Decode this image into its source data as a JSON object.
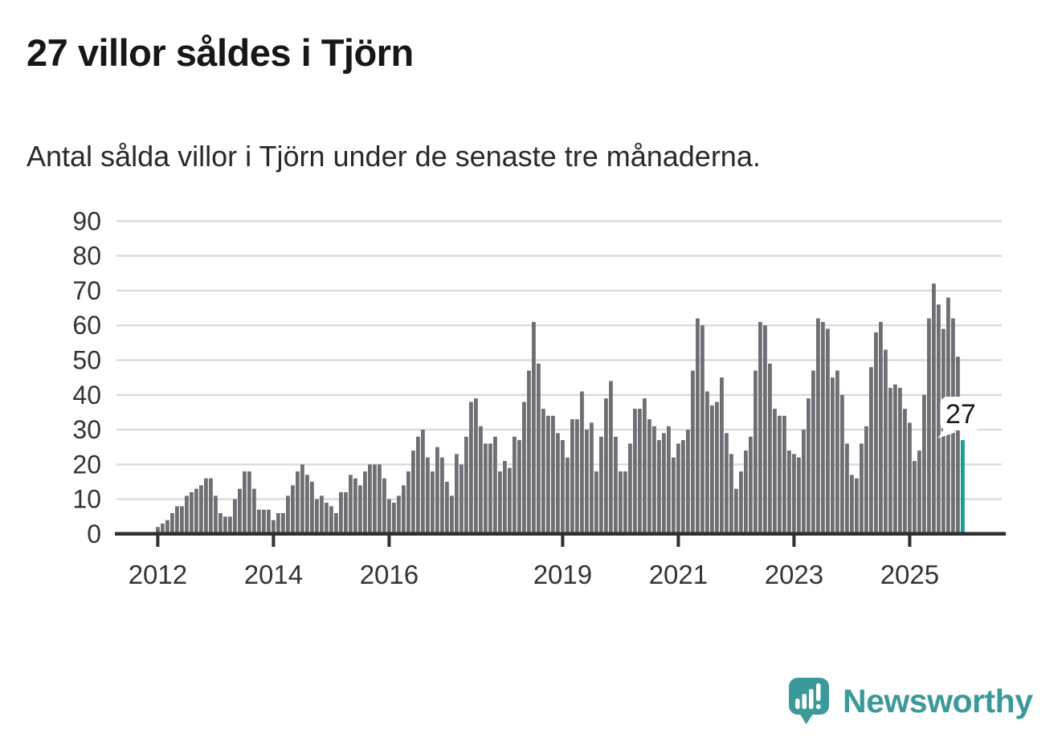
{
  "title": "27 villor såldes i Tjörn",
  "subtitle": "Antal sålda villor i Tjörn under de senaste tre månaderna.",
  "annotation": {
    "label": "27"
  },
  "branding": {
    "name": "Newsworthy",
    "icon": "newsworthy-chart-bubble-icon"
  },
  "colors": {
    "bar": "#6f6e74",
    "highlight": "#12a192",
    "grid": "#dadada",
    "axis": "#2f2f31",
    "axis_text": "#333336",
    "annotation_text": "#1a1a1c",
    "annotation_bg": "#ffffff",
    "brand": "#3b9a99"
  },
  "chart_data": {
    "type": "bar",
    "title": "27 villor såldes i Tjörn",
    "subtitle": "Antal sålda villor i Tjörn under de senaste tre månaderna.",
    "frequency": "monthly",
    "start": "2012-01",
    "ylim": [
      0,
      90
    ],
    "grid": true,
    "y_ticks": [
      0,
      10,
      20,
      30,
      40,
      50,
      60,
      70,
      80,
      90
    ],
    "x_tick_years": [
      2012,
      2014,
      2016,
      2019,
      2021,
      2023,
      2025
    ],
    "x_tick_labels": [
      "2012",
      "2014",
      "2016",
      "2019",
      "2021",
      "2023",
      "2025"
    ],
    "highlight_last": true,
    "last_value_label": "27",
    "values": [
      2,
      3,
      4,
      6,
      8,
      8,
      11,
      12,
      13,
      14,
      16,
      16,
      11,
      6,
      5,
      5,
      10,
      13,
      18,
      18,
      13,
      7,
      7,
      7,
      4,
      6,
      6,
      11,
      14,
      18,
      20,
      17,
      15,
      10,
      11,
      9,
      8,
      6,
      12,
      12,
      17,
      16,
      14,
      18,
      20,
      20,
      20,
      16,
      10,
      9,
      11,
      14,
      18,
      24,
      28,
      30,
      22,
      18,
      25,
      22,
      15,
      11,
      23,
      20,
      28,
      38,
      39,
      31,
      26,
      26,
      28,
      18,
      21,
      19,
      28,
      27,
      38,
      47,
      61,
      49,
      36,
      34,
      34,
      29,
      27,
      22,
      33,
      33,
      41,
      30,
      32,
      18,
      28,
      39,
      44,
      28,
      18,
      18,
      26,
      36,
      36,
      39,
      33,
      31,
      27,
      29,
      31,
      22,
      26,
      27,
      30,
      47,
      62,
      60,
      41,
      37,
      38,
      45,
      29,
      23,
      13,
      18,
      24,
      28,
      47,
      61,
      60,
      49,
      36,
      34,
      34,
      24,
      23,
      22,
      30,
      39,
      47,
      62,
      61,
      59,
      45,
      47,
      40,
      26,
      17,
      16,
      26,
      31,
      48,
      58,
      61,
      53,
      42,
      43,
      42,
      36,
      32,
      21,
      24,
      40,
      62,
      72,
      66,
      59,
      68,
      62,
      51,
      27
    ]
  }
}
